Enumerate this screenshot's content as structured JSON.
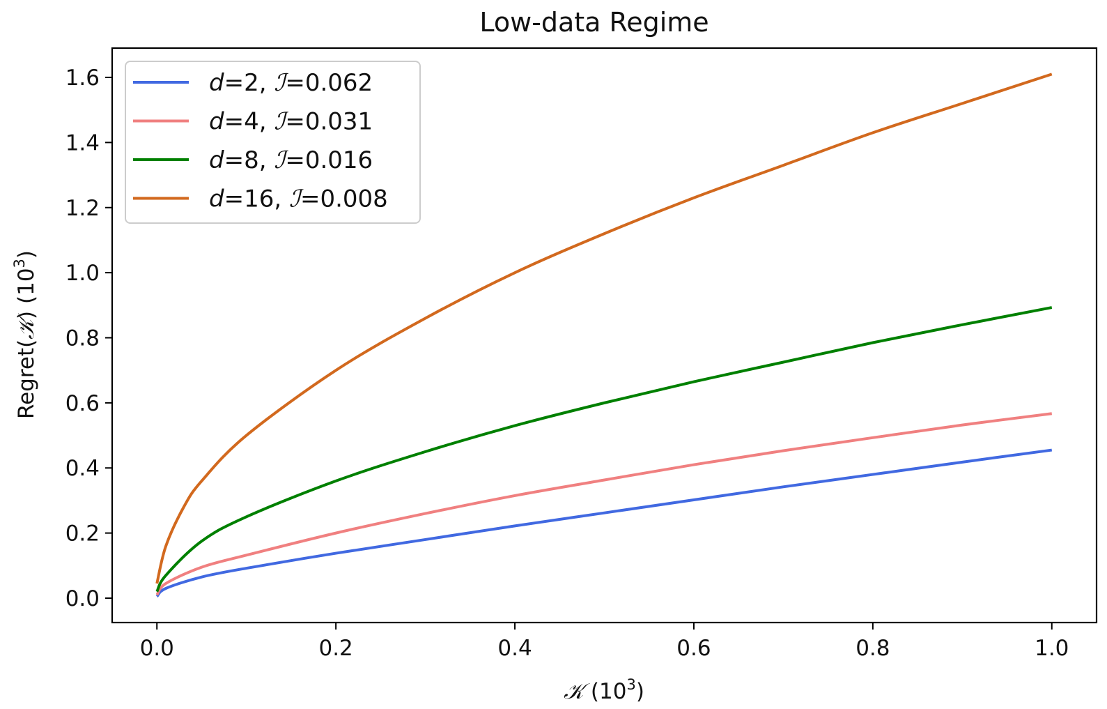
{
  "chart_data": {
    "type": "line",
    "title": "Low-data Regime",
    "xlabel": {
      "symbol": "𝒦",
      "unit_base": "(10",
      "unit_exp": "3",
      "unit_close": ")"
    },
    "ylabel": {
      "prefix": "Regret(",
      "symbol": "𝒦",
      "suffix": ") (10",
      "exp": "3",
      "close": ")"
    },
    "xlim": [
      -0.05,
      1.05
    ],
    "ylim": [
      -0.075,
      1.69
    ],
    "xticks": [
      0.0,
      0.2,
      0.4,
      0.6,
      0.8,
      1.0
    ],
    "xtick_labels": [
      "0.0",
      "0.2",
      "0.4",
      "0.6",
      "0.8",
      "1.0"
    ],
    "yticks": [
      0.0,
      0.2,
      0.4,
      0.6,
      0.8,
      1.0,
      1.2,
      1.4,
      1.6
    ],
    "ytick_labels": [
      "0.0",
      "0.2",
      "0.4",
      "0.6",
      "0.8",
      "1.0",
      "1.2",
      "1.4",
      "1.6"
    ],
    "grid": false,
    "legend_position": "top-left",
    "series": [
      {
        "name": "d=2, ℐ=0.062",
        "label_parts": {
          "var": "d",
          "d": "=2, ",
          "sym": "ℐ",
          "val": "=0.062"
        },
        "color": "#4169e1",
        "x": [
          0.0,
          0.01,
          0.05,
          0.1,
          0.2,
          0.3,
          0.4,
          0.5,
          0.6,
          0.7,
          0.8,
          0.9,
          1.0
        ],
        "y": [
          0.005,
          0.03,
          0.065,
          0.092,
          0.138,
          0.18,
          0.222,
          0.262,
          0.302,
          0.342,
          0.38,
          0.418,
          0.455
        ]
      },
      {
        "name": "d=4, ℐ=0.031",
        "label_parts": {
          "var": "d",
          "d": "=4, ",
          "sym": "ℐ",
          "val": "=0.031"
        },
        "color": "#f08080",
        "x": [
          0.0,
          0.01,
          0.05,
          0.1,
          0.2,
          0.3,
          0.4,
          0.5,
          0.6,
          0.7,
          0.8,
          0.9,
          1.0
        ],
        "y": [
          0.01,
          0.045,
          0.095,
          0.132,
          0.2,
          0.26,
          0.315,
          0.363,
          0.41,
          0.453,
          0.493,
          0.532,
          0.567
        ]
      },
      {
        "name": "d=8, ℐ=0.016",
        "label_parts": {
          "var": "d",
          "d": "=8, ",
          "sym": "ℐ",
          "val": "=0.016"
        },
        "color": "#008000",
        "x": [
          0.0,
          0.01,
          0.05,
          0.1,
          0.2,
          0.3,
          0.4,
          0.5,
          0.6,
          0.7,
          0.8,
          0.9,
          1.0
        ],
        "y": [
          0.02,
          0.07,
          0.175,
          0.25,
          0.36,
          0.45,
          0.53,
          0.6,
          0.665,
          0.725,
          0.785,
          0.84,
          0.893
        ]
      },
      {
        "name": "d=16, ℐ=0.008",
        "label_parts": {
          "var": "d",
          "d": "=16, ",
          "sym": "ℐ",
          "val": "=0.008"
        },
        "color": "#d2691e",
        "x": [
          0.0,
          0.01,
          0.03,
          0.05,
          0.1,
          0.2,
          0.3,
          0.4,
          0.5,
          0.6,
          0.7,
          0.8,
          0.9,
          1.0
        ],
        "y": [
          0.045,
          0.16,
          0.28,
          0.36,
          0.5,
          0.7,
          0.86,
          1.0,
          1.12,
          1.23,
          1.33,
          1.43,
          1.52,
          1.61
        ]
      }
    ]
  }
}
